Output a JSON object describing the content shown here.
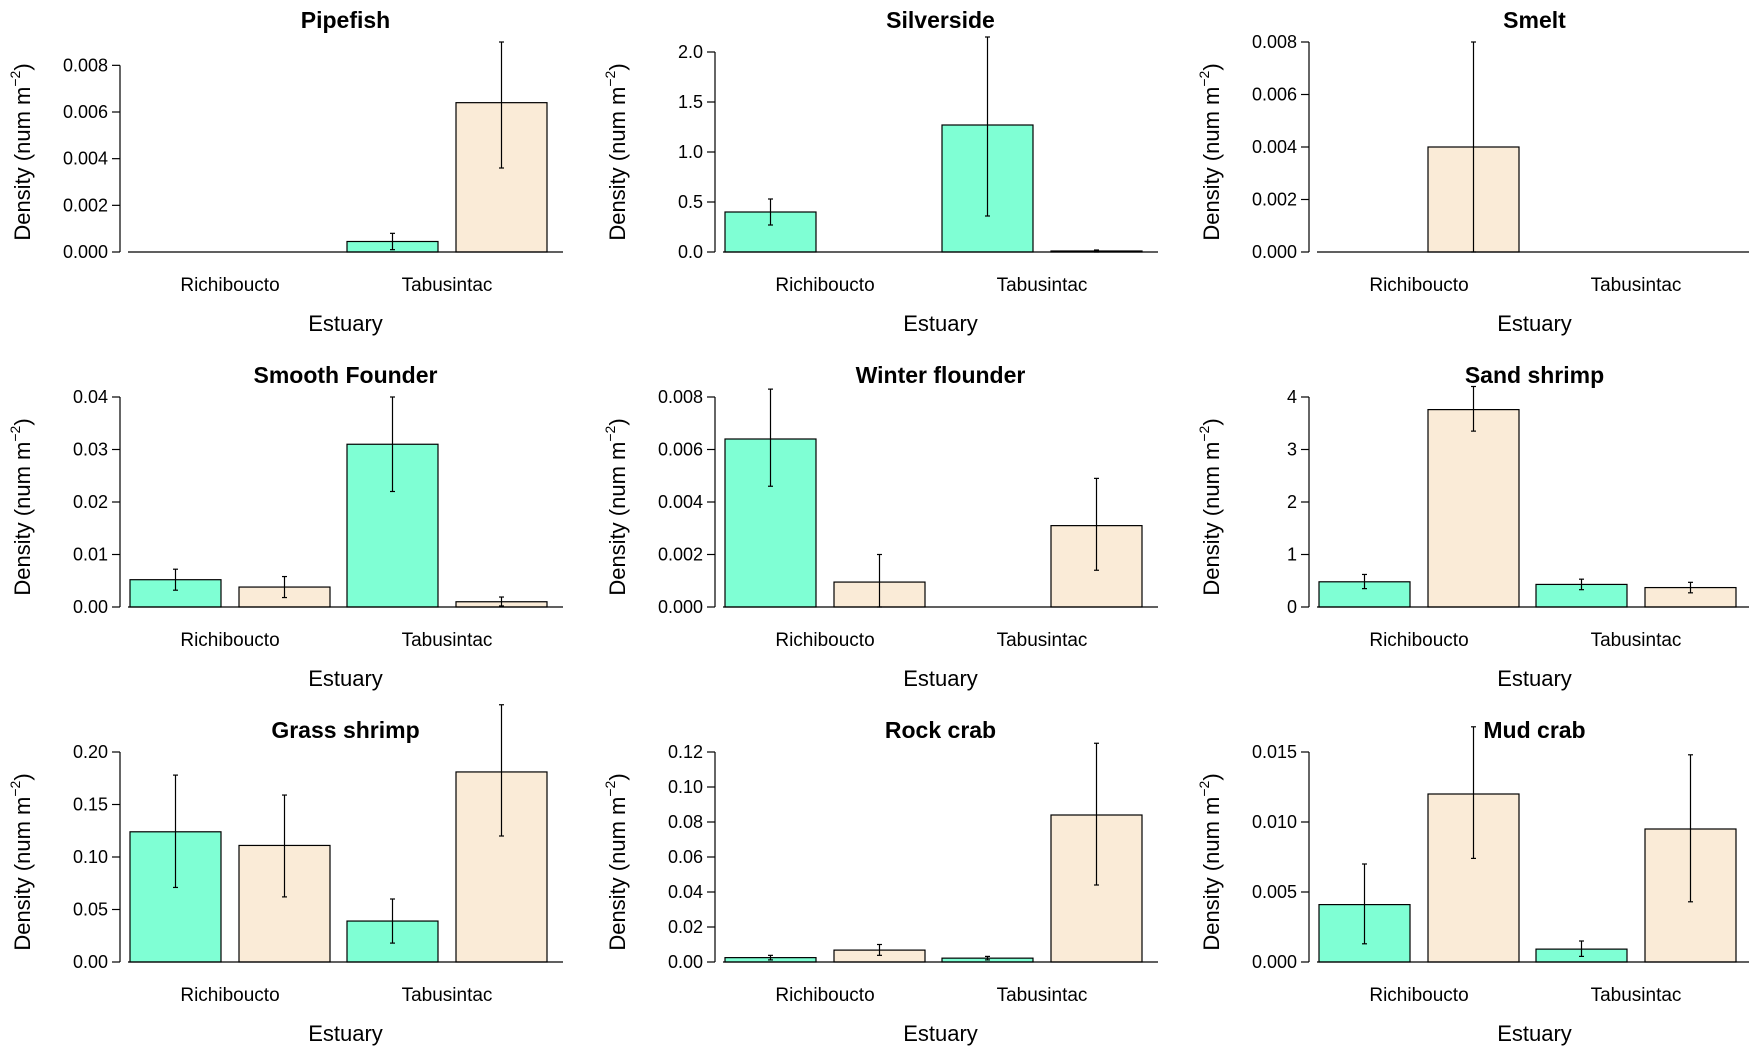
{
  "colors": {
    "group1": "#7fffd4",
    "group2": "#faebd7",
    "stroke": "#000000"
  },
  "chart_data": [
    {
      "type": "bar",
      "title": "Pipefish",
      "xlabel": "Estuary",
      "ylabel": "Density (num m",
      "ylabel_sup": "−2",
      "ylabel_close": ")",
      "categories": [
        "Richiboucto",
        "Tabusintac"
      ],
      "ylim": [
        0,
        0.009
      ],
      "yticks": [
        0,
        0.002,
        0.004,
        0.006,
        0.008
      ],
      "ytick_labels": [
        "0.000",
        "0.002",
        "0.004",
        "0.006",
        "0.008"
      ],
      "bars": [
        {
          "category": "Richiboucto",
          "group": 1,
          "value": 0,
          "err_low": 0,
          "err_high": 0
        },
        {
          "category": "Richiboucto",
          "group": 2,
          "value": 0,
          "err_low": 0,
          "err_high": 0
        },
        {
          "category": "Tabusintac",
          "group": 1,
          "value": 0.00045,
          "err_low": 0.0001,
          "err_high": 0.0008
        },
        {
          "category": "Tabusintac",
          "group": 2,
          "value": 0.0064,
          "err_low": 0.0036,
          "err_high": 0.009
        }
      ]
    },
    {
      "type": "bar",
      "title": "Silverside",
      "xlabel": "Estuary",
      "ylabel": "Density (num m",
      "ylabel_sup": "−2",
      "ylabel_close": ")",
      "categories": [
        "Richiboucto",
        "Tabusintac"
      ],
      "ylim": [
        0,
        2.1
      ],
      "yticks": [
        0,
        0.5,
        1.0,
        1.5,
        2.0
      ],
      "ytick_labels": [
        "0.0",
        "0.5",
        "1.0",
        "1.5",
        "2.0"
      ],
      "bars": [
        {
          "category": "Richiboucto",
          "group": 1,
          "value": 0.4,
          "err_low": 0.27,
          "err_high": 0.53
        },
        {
          "category": "Richiboucto",
          "group": 2,
          "value": 0,
          "err_low": 0,
          "err_high": 0
        },
        {
          "category": "Tabusintac",
          "group": 1,
          "value": 1.27,
          "err_low": 0.36,
          "err_high": 2.15
        },
        {
          "category": "Tabusintac",
          "group": 2,
          "value": 0.01,
          "err_low": 0.0,
          "err_high": 0.02
        }
      ]
    },
    {
      "type": "bar",
      "title": "Smelt",
      "xlabel": "Estuary",
      "ylabel": "Density (num m",
      "ylabel_sup": "−2",
      "ylabel_close": ")",
      "categories": [
        "Richiboucto",
        "Tabusintac"
      ],
      "ylim": [
        0,
        0.008
      ],
      "yticks": [
        0,
        0.002,
        0.004,
        0.006,
        0.008
      ],
      "ytick_labels": [
        "0.000",
        "0.002",
        "0.004",
        "0.006",
        "0.008"
      ],
      "bars": [
        {
          "category": "Richiboucto",
          "group": 1,
          "value": 0,
          "err_low": 0,
          "err_high": 0
        },
        {
          "category": "Richiboucto",
          "group": 2,
          "value": 0.004,
          "err_low": 0,
          "err_high": 0.008
        },
        {
          "category": "Tabusintac",
          "group": 1,
          "value": 0,
          "err_low": 0,
          "err_high": 0
        },
        {
          "category": "Tabusintac",
          "group": 2,
          "value": 0,
          "err_low": 0,
          "err_high": 0
        }
      ]
    },
    {
      "type": "bar",
      "title": "Smooth Founder",
      "xlabel": "Estuary",
      "ylabel": "Density (num m",
      "ylabel_sup": "−2",
      "ylabel_close": ")",
      "categories": [
        "Richiboucto",
        "Tabusintac"
      ],
      "ylim": [
        0,
        0.04
      ],
      "yticks": [
        0,
        0.01,
        0.02,
        0.03,
        0.04
      ],
      "ytick_labels": [
        "0.00",
        "0.01",
        "0.02",
        "0.03",
        "0.04"
      ],
      "bars": [
        {
          "category": "Richiboucto",
          "group": 1,
          "value": 0.0052,
          "err_low": 0.0032,
          "err_high": 0.0072
        },
        {
          "category": "Richiboucto",
          "group": 2,
          "value": 0.0038,
          "err_low": 0.0018,
          "err_high": 0.0058
        },
        {
          "category": "Tabusintac",
          "group": 1,
          "value": 0.031,
          "err_low": 0.022,
          "err_high": 0.04
        },
        {
          "category": "Tabusintac",
          "group": 2,
          "value": 0.001,
          "err_low": 0.0002,
          "err_high": 0.0019
        }
      ]
    },
    {
      "type": "bar",
      "title": "Winter flounder",
      "xlabel": "Estuary",
      "ylabel": "Density (num m",
      "ylabel_sup": "−2",
      "ylabel_close": ")",
      "categories": [
        "Richiboucto",
        "Tabusintac"
      ],
      "ylim": [
        0,
        0.008
      ],
      "yticks": [
        0,
        0.002,
        0.004,
        0.006,
        0.008
      ],
      "ytick_labels": [
        "0.000",
        "0.002",
        "0.004",
        "0.006",
        "0.008"
      ],
      "bars": [
        {
          "category": "Richiboucto",
          "group": 1,
          "value": 0.0064,
          "err_low": 0.0046,
          "err_high": 0.0083
        },
        {
          "category": "Richiboucto",
          "group": 2,
          "value": 0.00095,
          "err_low": 0,
          "err_high": 0.002
        },
        {
          "category": "Tabusintac",
          "group": 1,
          "value": 0,
          "err_low": 0,
          "err_high": 0
        },
        {
          "category": "Tabusintac",
          "group": 2,
          "value": 0.0031,
          "err_low": 0.0014,
          "err_high": 0.0049
        }
      ]
    },
    {
      "type": "bar",
      "title": "Sand shrimp",
      "xlabel": "Estuary",
      "ylabel": "Density (num m",
      "ylabel_sup": "−2",
      "ylabel_close": ")",
      "categories": [
        "Richiboucto",
        "Tabusintac"
      ],
      "ylim": [
        0,
        4
      ],
      "yticks": [
        0,
        1,
        2,
        3,
        4
      ],
      "ytick_labels": [
        "0",
        "1",
        "2",
        "3",
        "4"
      ],
      "bars": [
        {
          "category": "Richiboucto",
          "group": 1,
          "value": 0.48,
          "err_low": 0.35,
          "err_high": 0.62
        },
        {
          "category": "Richiboucto",
          "group": 2,
          "value": 3.76,
          "err_low": 3.35,
          "err_high": 4.2
        },
        {
          "category": "Tabusintac",
          "group": 1,
          "value": 0.43,
          "err_low": 0.33,
          "err_high": 0.53
        },
        {
          "category": "Tabusintac",
          "group": 2,
          "value": 0.37,
          "err_low": 0.27,
          "err_high": 0.47
        }
      ]
    },
    {
      "type": "bar",
      "title": "Grass shrimp",
      "xlabel": "Estuary",
      "ylabel": "Density (num m",
      "ylabel_sup": "−2",
      "ylabel_close": ")",
      "categories": [
        "Richiboucto",
        "Tabusintac"
      ],
      "ylim": [
        0,
        0.2
      ],
      "yticks": [
        0,
        0.05,
        0.1,
        0.15,
        0.2
      ],
      "ytick_labels": [
        "0.00",
        "0.05",
        "0.10",
        "0.15",
        "0.20"
      ],
      "bars": [
        {
          "category": "Richiboucto",
          "group": 1,
          "value": 0.124,
          "err_low": 0.071,
          "err_high": 0.178
        },
        {
          "category": "Richiboucto",
          "group": 2,
          "value": 0.111,
          "err_low": 0.062,
          "err_high": 0.159
        },
        {
          "category": "Tabusintac",
          "group": 1,
          "value": 0.039,
          "err_low": 0.018,
          "err_high": 0.06
        },
        {
          "category": "Tabusintac",
          "group": 2,
          "value": 0.181,
          "err_low": 0.12,
          "err_high": 0.245
        }
      ]
    },
    {
      "type": "bar",
      "title": "Rock crab",
      "xlabel": "Estuary",
      "ylabel": "Density (num m",
      "ylabel_sup": "−2",
      "ylabel_close": ")",
      "categories": [
        "Richiboucto",
        "Tabusintac"
      ],
      "ylim": [
        0,
        0.12
      ],
      "yticks": [
        0,
        0.02,
        0.04,
        0.06,
        0.08,
        0.1,
        0.12
      ],
      "ytick_labels": [
        "0.00",
        "0.02",
        "0.04",
        "0.06",
        "0.08",
        "0.10",
        "0.12"
      ],
      "bars": [
        {
          "category": "Richiboucto",
          "group": 1,
          "value": 0.0025,
          "err_low": 0.0012,
          "err_high": 0.0038
        },
        {
          "category": "Richiboucto",
          "group": 2,
          "value": 0.0068,
          "err_low": 0.0038,
          "err_high": 0.01
        },
        {
          "category": "Tabusintac",
          "group": 1,
          "value": 0.0022,
          "err_low": 0.0012,
          "err_high": 0.0032
        },
        {
          "category": "Tabusintac",
          "group": 2,
          "value": 0.084,
          "err_low": 0.044,
          "err_high": 0.125
        }
      ]
    },
    {
      "type": "bar",
      "title": "Mud crab",
      "xlabel": "Estuary",
      "ylabel": "Density (num m",
      "ylabel_sup": "−2",
      "ylabel_close": ")",
      "categories": [
        "Richiboucto",
        "Tabusintac"
      ],
      "ylim": [
        0,
        0.015
      ],
      "yticks": [
        0,
        0.005,
        0.01,
        0.015
      ],
      "ytick_labels": [
        "0.000",
        "0.005",
        "0.010",
        "0.015"
      ],
      "bars": [
        {
          "category": "Richiboucto",
          "group": 1,
          "value": 0.0041,
          "err_low": 0.0013,
          "err_high": 0.007
        },
        {
          "category": "Richiboucto",
          "group": 2,
          "value": 0.012,
          "err_low": 0.0074,
          "err_high": 0.0168
        },
        {
          "category": "Tabusintac",
          "group": 1,
          "value": 0.00092,
          "err_low": 0.0004,
          "err_high": 0.0015
        },
        {
          "category": "Tabusintac",
          "group": 2,
          "value": 0.0095,
          "err_low": 0.0043,
          "err_high": 0.0148
        }
      ]
    }
  ]
}
